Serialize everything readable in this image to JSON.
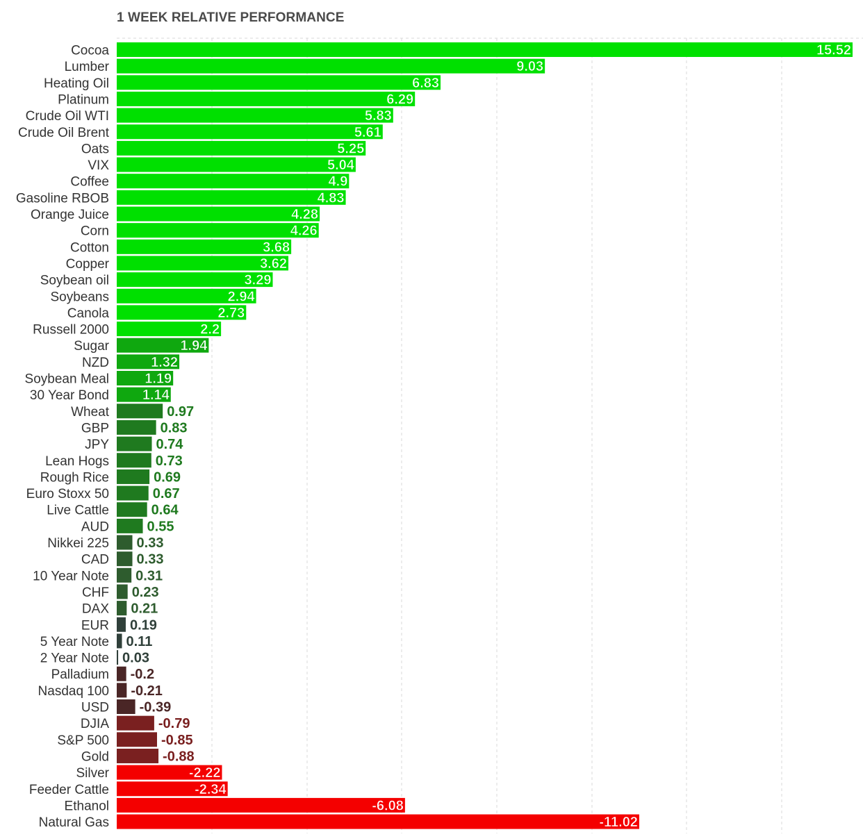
{
  "chart_data": {
    "type": "bar",
    "orientation": "horizontal",
    "title": "1 WEEK RELATIVE PERFORMANCE",
    "xlabel": "",
    "ylabel": "",
    "xlim": [
      0,
      15.52
    ],
    "grid": true,
    "categories": [
      "Cocoa",
      "Lumber",
      "Heating Oil",
      "Platinum",
      "Crude Oil WTI",
      "Crude Oil Brent",
      "Oats",
      "VIX",
      "Coffee",
      "Gasoline RBOB",
      "Orange Juice",
      "Corn",
      "Cotton",
      "Copper",
      "Soybean oil",
      "Soybeans",
      "Canola",
      "Russell 2000",
      "Sugar",
      "NZD",
      "Soybean Meal",
      "30 Year Bond",
      "Wheat",
      "GBP",
      "JPY",
      "Lean Hogs",
      "Rough Rice",
      "Euro Stoxx 50",
      "Live Cattle",
      "AUD",
      "Nikkei 225",
      "CAD",
      "10 Year Note",
      "CHF",
      "DAX",
      "EUR",
      "5 Year Note",
      "2 Year Note",
      "Palladium",
      "Nasdaq 100",
      "USD",
      "DJIA",
      "S&P 500",
      "Gold",
      "Silver",
      "Feeder Cattle",
      "Ethanol",
      "Natural Gas"
    ],
    "values": [
      15.52,
      9.03,
      6.83,
      6.29,
      5.83,
      5.61,
      5.25,
      5.04,
      4.9,
      4.83,
      4.28,
      4.26,
      3.68,
      3.62,
      3.29,
      2.94,
      2.73,
      2.2,
      1.94,
      1.32,
      1.19,
      1.14,
      0.97,
      0.83,
      0.74,
      0.73,
      0.69,
      0.67,
      0.64,
      0.55,
      0.33,
      0.33,
      0.31,
      0.23,
      0.21,
      0.19,
      0.11,
      0.03,
      -0.2,
      -0.21,
      -0.39,
      -0.79,
      -0.85,
      -0.88,
      -2.22,
      -2.34,
      -6.08,
      -11.02
    ],
    "value_labels": [
      "15.52",
      "9.03",
      "6.83",
      "6.29",
      "5.83",
      "5.61",
      "5.25",
      "5.04",
      "4.9",
      "4.83",
      "4.28",
      "4.26",
      "3.68",
      "3.62",
      "3.29",
      "2.94",
      "2.73",
      "2.2",
      "1.94",
      "1.32",
      "1.19",
      "1.14",
      "0.97",
      "0.83",
      "0.74",
      "0.73",
      "0.69",
      "0.67",
      "0.64",
      "0.55",
      "0.33",
      "0.33",
      "0.31",
      "0.23",
      "0.21",
      "0.19",
      "0.11",
      "0.03",
      "-0.2",
      "-0.21",
      "-0.39",
      "-0.79",
      "-0.85",
      "-0.88",
      "-2.22",
      "-2.34",
      "-6.08",
      "-11.02"
    ],
    "bar_length": "absolute value",
    "colors": {
      "strong_positive": "#00e000",
      "mid_positive": "#0fa80f",
      "moderate_positive": "#1f7a1f",
      "weak_positive": "#2e5c2e",
      "flat": "#30403a",
      "weak_negative": "#4a2626",
      "moderate_negative": "#7a2020",
      "strong_negative": "#f40000",
      "inside_label_text": "#ffffff",
      "grid": "#d9d9d9"
    }
  }
}
